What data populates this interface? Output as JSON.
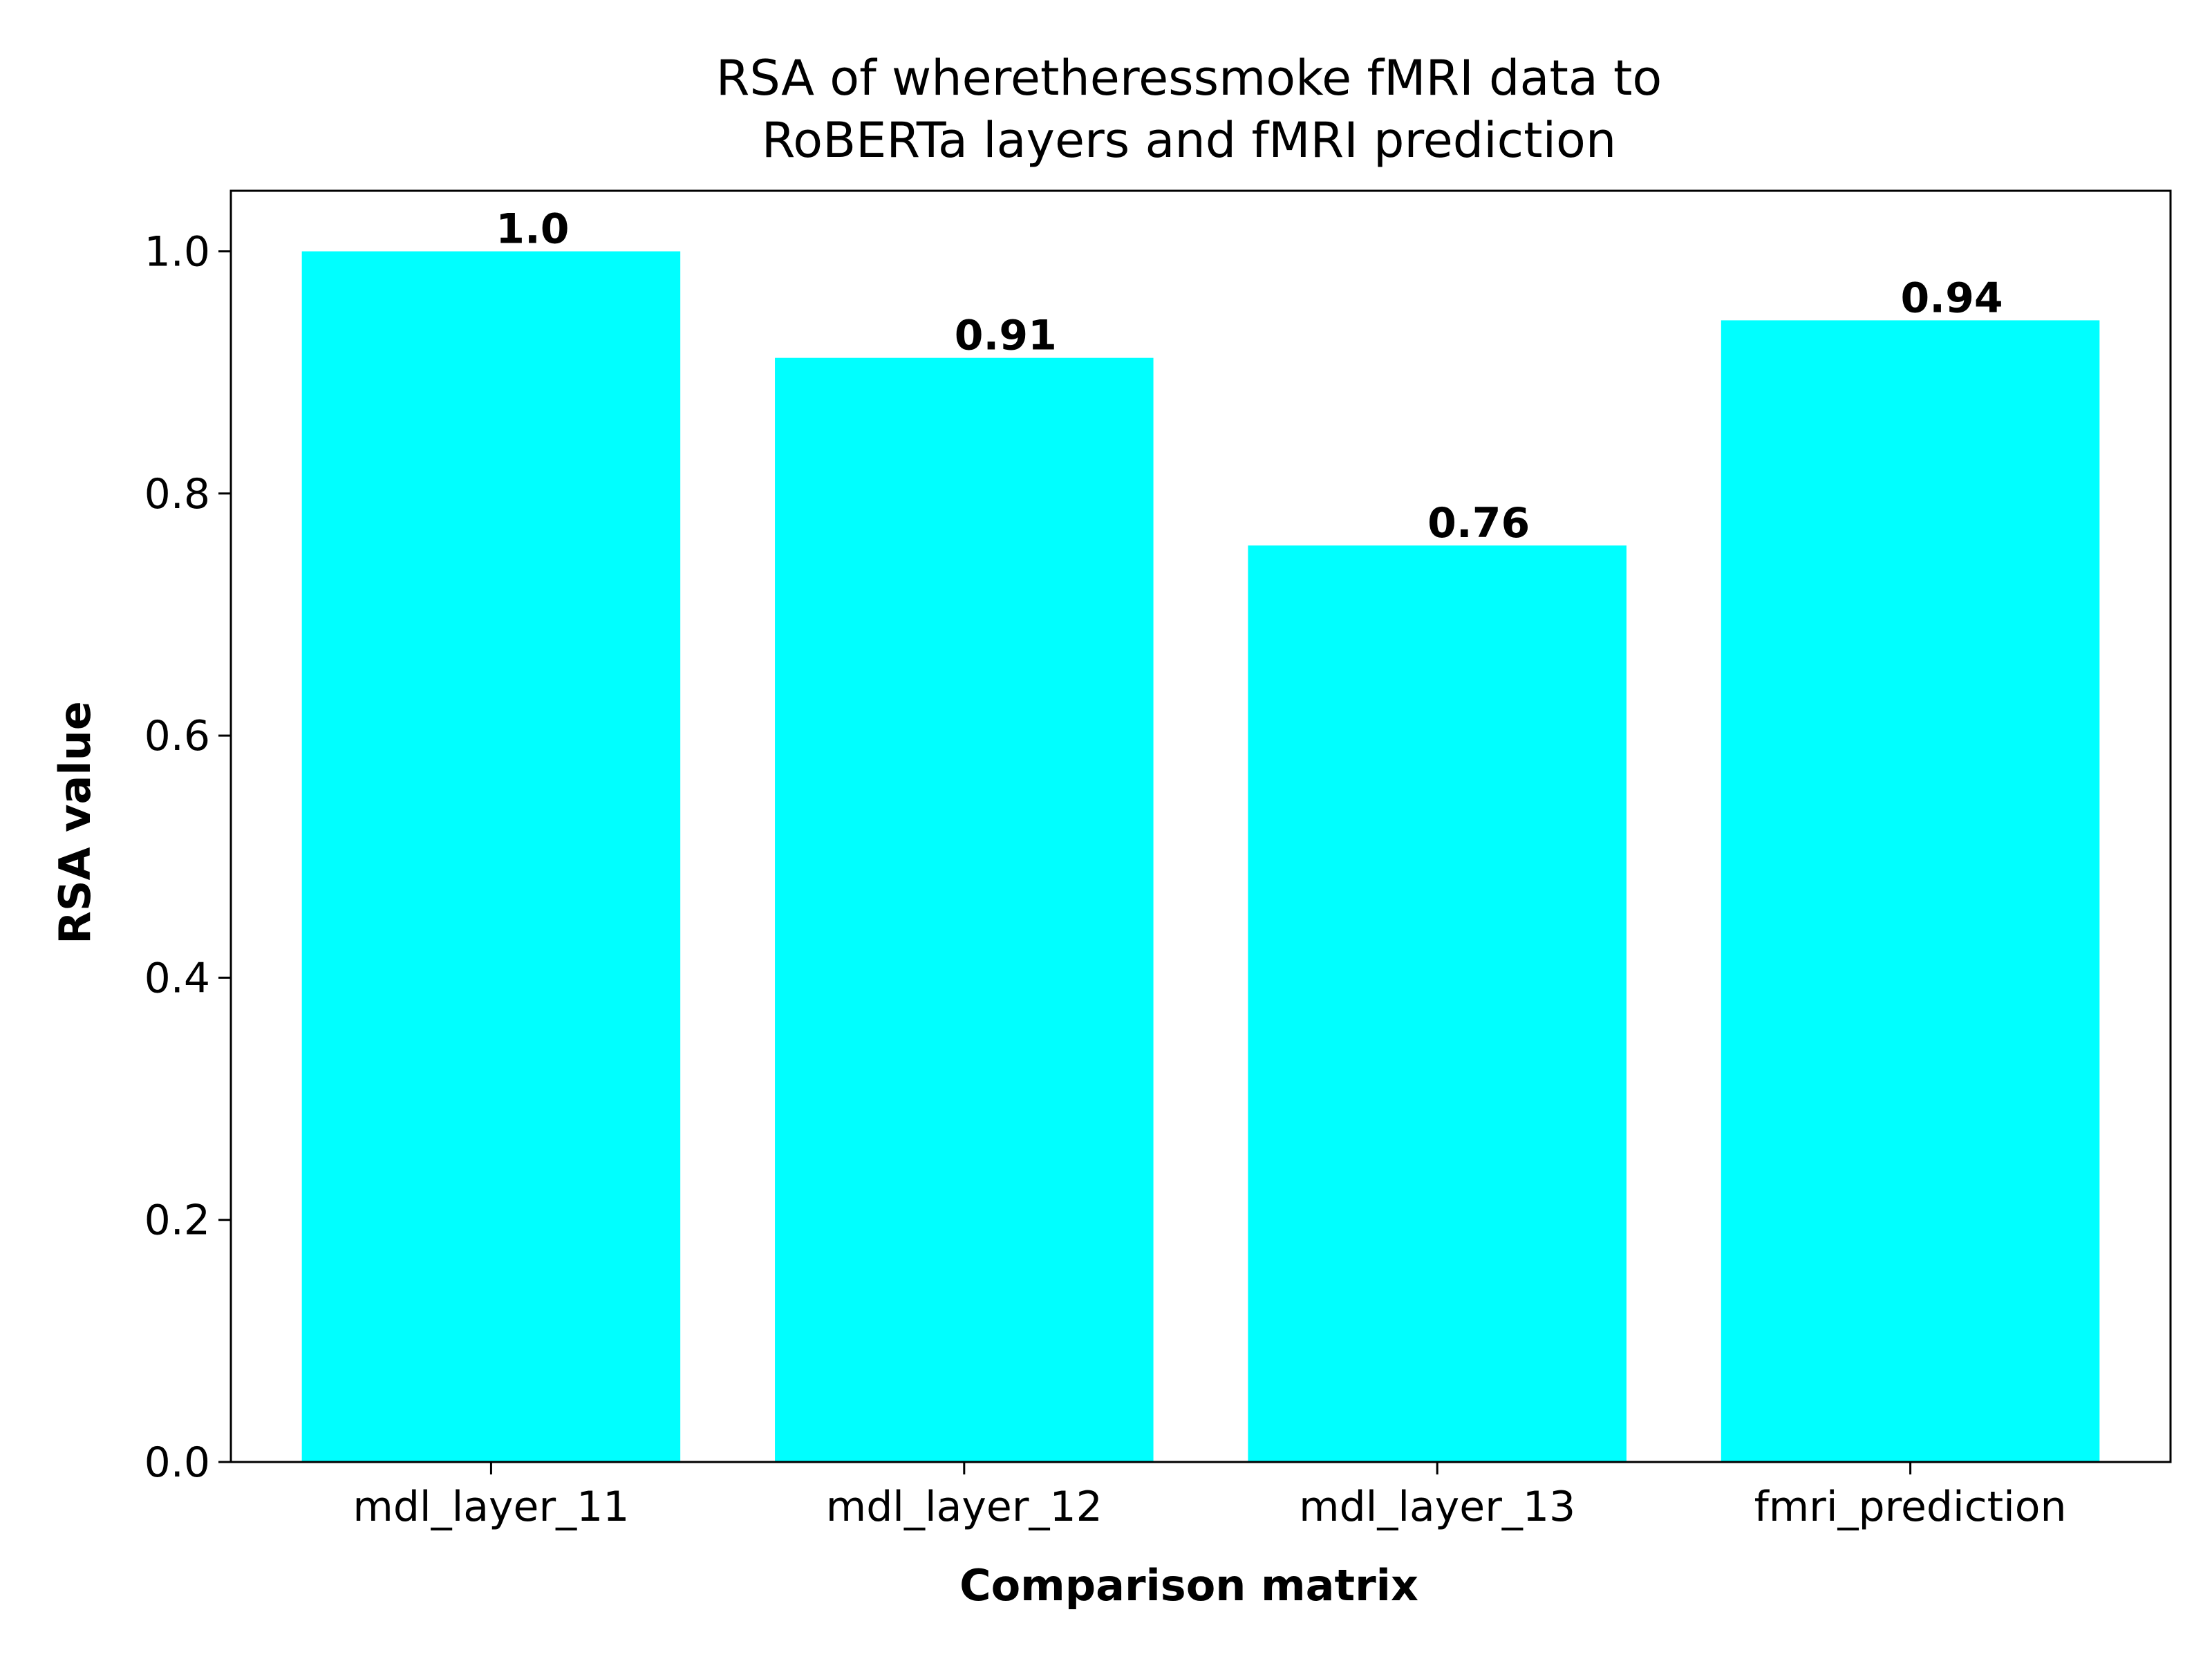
{
  "chart_data": {
    "type": "bar",
    "title_lines": [
      "RSA of wheretheressmoke fMRI data to",
      "RoBERTa layers and fMRI prediction"
    ],
    "xlabel": "Comparison matrix",
    "ylabel": "RSA value",
    "categories": [
      "mdl_layer_11",
      "mdl_layer_12",
      "mdl_layer_13",
      "fmri_prediction"
    ],
    "values": [
      1.0,
      0.912,
      0.757,
      0.943
    ],
    "value_labels": [
      "1.0",
      "0.91",
      "0.76",
      "0.94"
    ],
    "ylim": [
      0,
      1.05
    ],
    "yticks": [
      0.0,
      0.2,
      0.4,
      0.6,
      0.8,
      1.0
    ],
    "ytick_labels": [
      "0.0",
      "0.2",
      "0.4",
      "0.6",
      "0.8",
      "1.0"
    ],
    "bar_color": "#00ffff",
    "grid": false,
    "legend": "none"
  }
}
